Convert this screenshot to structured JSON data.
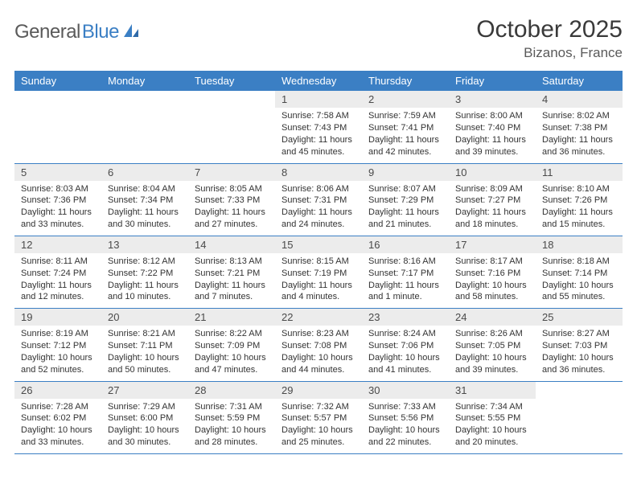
{
  "logo": {
    "text_gray": "General",
    "text_blue": "Blue"
  },
  "title": "October 2025",
  "location": "Bizanos, France",
  "header_bg": "#3b7fc4",
  "daynum_bg": "#ececec",
  "days": [
    "Sunday",
    "Monday",
    "Tuesday",
    "Wednesday",
    "Thursday",
    "Friday",
    "Saturday"
  ],
  "weeks": [
    [
      {
        "n": "",
        "lines": []
      },
      {
        "n": "",
        "lines": []
      },
      {
        "n": "",
        "lines": []
      },
      {
        "n": "1",
        "lines": [
          "Sunrise: 7:58 AM",
          "Sunset: 7:43 PM",
          "Daylight: 11 hours and 45 minutes."
        ]
      },
      {
        "n": "2",
        "lines": [
          "Sunrise: 7:59 AM",
          "Sunset: 7:41 PM",
          "Daylight: 11 hours and 42 minutes."
        ]
      },
      {
        "n": "3",
        "lines": [
          "Sunrise: 8:00 AM",
          "Sunset: 7:40 PM",
          "Daylight: 11 hours and 39 minutes."
        ]
      },
      {
        "n": "4",
        "lines": [
          "Sunrise: 8:02 AM",
          "Sunset: 7:38 PM",
          "Daylight: 11 hours and 36 minutes."
        ]
      }
    ],
    [
      {
        "n": "5",
        "lines": [
          "Sunrise: 8:03 AM",
          "Sunset: 7:36 PM",
          "Daylight: 11 hours and 33 minutes."
        ]
      },
      {
        "n": "6",
        "lines": [
          "Sunrise: 8:04 AM",
          "Sunset: 7:34 PM",
          "Daylight: 11 hours and 30 minutes."
        ]
      },
      {
        "n": "7",
        "lines": [
          "Sunrise: 8:05 AM",
          "Sunset: 7:33 PM",
          "Daylight: 11 hours and 27 minutes."
        ]
      },
      {
        "n": "8",
        "lines": [
          "Sunrise: 8:06 AM",
          "Sunset: 7:31 PM",
          "Daylight: 11 hours and 24 minutes."
        ]
      },
      {
        "n": "9",
        "lines": [
          "Sunrise: 8:07 AM",
          "Sunset: 7:29 PM",
          "Daylight: 11 hours and 21 minutes."
        ]
      },
      {
        "n": "10",
        "lines": [
          "Sunrise: 8:09 AM",
          "Sunset: 7:27 PM",
          "Daylight: 11 hours and 18 minutes."
        ]
      },
      {
        "n": "11",
        "lines": [
          "Sunrise: 8:10 AM",
          "Sunset: 7:26 PM",
          "Daylight: 11 hours and 15 minutes."
        ]
      }
    ],
    [
      {
        "n": "12",
        "lines": [
          "Sunrise: 8:11 AM",
          "Sunset: 7:24 PM",
          "Daylight: 11 hours and 12 minutes."
        ]
      },
      {
        "n": "13",
        "lines": [
          "Sunrise: 8:12 AM",
          "Sunset: 7:22 PM",
          "Daylight: 11 hours and 10 minutes."
        ]
      },
      {
        "n": "14",
        "lines": [
          "Sunrise: 8:13 AM",
          "Sunset: 7:21 PM",
          "Daylight: 11 hours and 7 minutes."
        ]
      },
      {
        "n": "15",
        "lines": [
          "Sunrise: 8:15 AM",
          "Sunset: 7:19 PM",
          "Daylight: 11 hours and 4 minutes."
        ]
      },
      {
        "n": "16",
        "lines": [
          "Sunrise: 8:16 AM",
          "Sunset: 7:17 PM",
          "Daylight: 11 hours and 1 minute."
        ]
      },
      {
        "n": "17",
        "lines": [
          "Sunrise: 8:17 AM",
          "Sunset: 7:16 PM",
          "Daylight: 10 hours and 58 minutes."
        ]
      },
      {
        "n": "18",
        "lines": [
          "Sunrise: 8:18 AM",
          "Sunset: 7:14 PM",
          "Daylight: 10 hours and 55 minutes."
        ]
      }
    ],
    [
      {
        "n": "19",
        "lines": [
          "Sunrise: 8:19 AM",
          "Sunset: 7:12 PM",
          "Daylight: 10 hours and 52 minutes."
        ]
      },
      {
        "n": "20",
        "lines": [
          "Sunrise: 8:21 AM",
          "Sunset: 7:11 PM",
          "Daylight: 10 hours and 50 minutes."
        ]
      },
      {
        "n": "21",
        "lines": [
          "Sunrise: 8:22 AM",
          "Sunset: 7:09 PM",
          "Daylight: 10 hours and 47 minutes."
        ]
      },
      {
        "n": "22",
        "lines": [
          "Sunrise: 8:23 AM",
          "Sunset: 7:08 PM",
          "Daylight: 10 hours and 44 minutes."
        ]
      },
      {
        "n": "23",
        "lines": [
          "Sunrise: 8:24 AM",
          "Sunset: 7:06 PM",
          "Daylight: 10 hours and 41 minutes."
        ]
      },
      {
        "n": "24",
        "lines": [
          "Sunrise: 8:26 AM",
          "Sunset: 7:05 PM",
          "Daylight: 10 hours and 39 minutes."
        ]
      },
      {
        "n": "25",
        "lines": [
          "Sunrise: 8:27 AM",
          "Sunset: 7:03 PM",
          "Daylight: 10 hours and 36 minutes."
        ]
      }
    ],
    [
      {
        "n": "26",
        "lines": [
          "Sunrise: 7:28 AM",
          "Sunset: 6:02 PM",
          "Daylight: 10 hours and 33 minutes."
        ]
      },
      {
        "n": "27",
        "lines": [
          "Sunrise: 7:29 AM",
          "Sunset: 6:00 PM",
          "Daylight: 10 hours and 30 minutes."
        ]
      },
      {
        "n": "28",
        "lines": [
          "Sunrise: 7:31 AM",
          "Sunset: 5:59 PM",
          "Daylight: 10 hours and 28 minutes."
        ]
      },
      {
        "n": "29",
        "lines": [
          "Sunrise: 7:32 AM",
          "Sunset: 5:57 PM",
          "Daylight: 10 hours and 25 minutes."
        ]
      },
      {
        "n": "30",
        "lines": [
          "Sunrise: 7:33 AM",
          "Sunset: 5:56 PM",
          "Daylight: 10 hours and 22 minutes."
        ]
      },
      {
        "n": "31",
        "lines": [
          "Sunrise: 7:34 AM",
          "Sunset: 5:55 PM",
          "Daylight: 10 hours and 20 minutes."
        ]
      },
      {
        "n": "",
        "lines": []
      }
    ]
  ]
}
